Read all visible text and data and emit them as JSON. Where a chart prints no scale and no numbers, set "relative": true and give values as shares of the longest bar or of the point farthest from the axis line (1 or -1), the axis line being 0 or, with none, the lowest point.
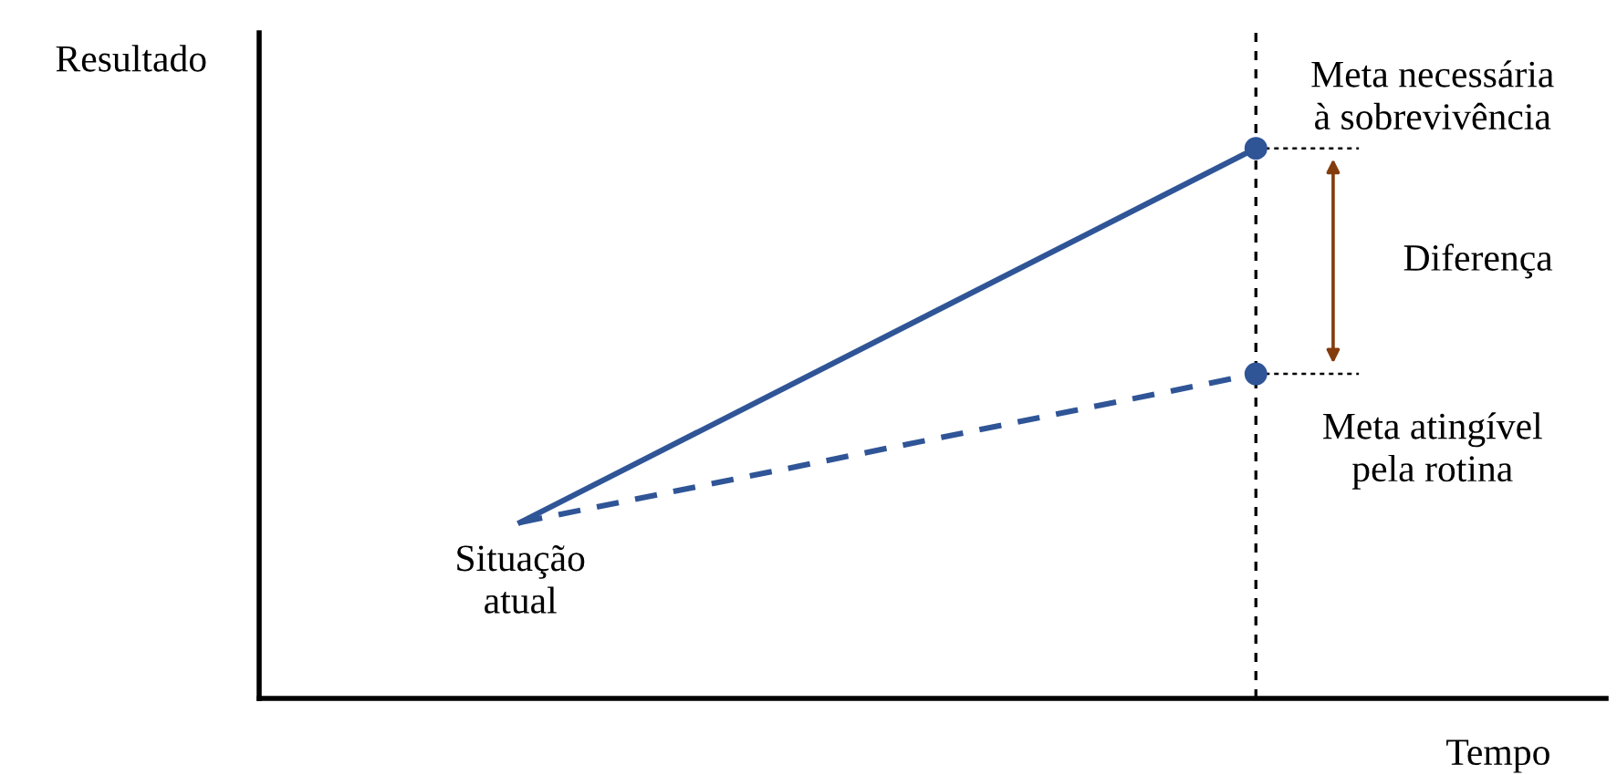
{
  "chart_data": {
    "type": "line",
    "relative": true,
    "xlabel": "Tempo",
    "ylabel": "Resultado",
    "categories": [
      null,
      null
    ],
    "series": [
      {
        "color": "#2f5597",
        "values": [
          0.32,
          1
        ],
        "line_style": "solid",
        "marker": "circle"
      },
      {
        "color": "#2f5597",
        "values": [
          0.32,
          0.59
        ],
        "line_style": "dashed",
        "marker": "circle"
      }
    ],
    "annotations": [
      "Situação\natual",
      "Meta necessária\nà sobrevivência",
      "Meta atingível\npela rotina",
      "Diferença"
    ]
  }
}
